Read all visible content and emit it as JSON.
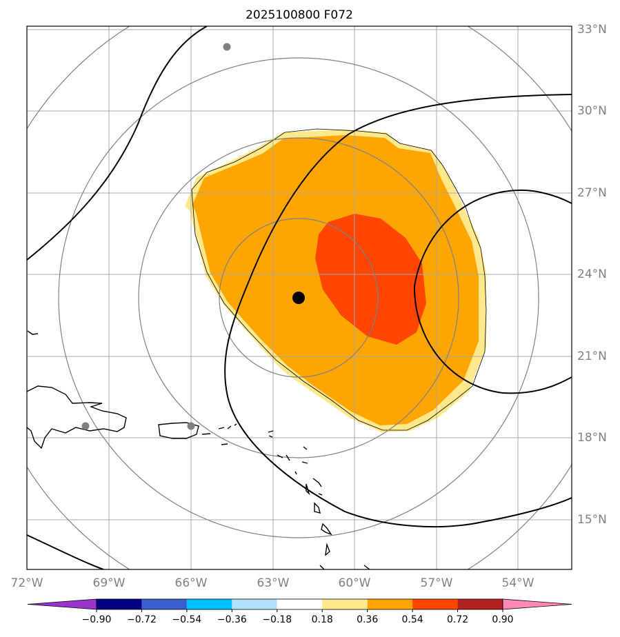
{
  "title": "2025100800 F072",
  "lon_labels": [
    "72°W",
    "69°W",
    "66°W",
    "63°W",
    "60°W",
    "57°W",
    "54°W"
  ],
  "lat_labels": [
    "33°N",
    "30°N",
    "27°N",
    "24°N",
    "21°N",
    "18°N",
    "15°N"
  ],
  "colorbar": {
    "tick_labels": [
      "−0.90",
      "−0.72",
      "−0.54",
      "−0.36",
      "−0.18",
      "0.18",
      "0.36",
      "0.54",
      "0.72",
      "0.90"
    ],
    "colors": [
      "#9933cc",
      "#000080",
      "#3a5fcd",
      "#00bfff",
      "#b0e2ff",
      "#ffffff",
      "#ffe88c",
      "#ffa500",
      "#ff4500",
      "#b22222",
      "#ff88b4"
    ]
  },
  "field_colors": {
    "light": "#ffe88c",
    "mid": "#ffa500",
    "high": "#ff4500"
  },
  "center_marker_color": "#000000",
  "station_marker_color": "#808080"
}
